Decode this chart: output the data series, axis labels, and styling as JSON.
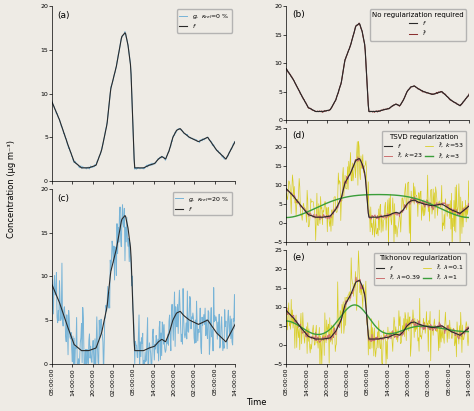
{
  "fig_width": 4.74,
  "fig_height": 4.11,
  "dpi": 100,
  "background_color": "#eeebe5",
  "panel_labels": [
    "(a)",
    "(b)",
    "(c)",
    "(d)",
    "(e)"
  ],
  "panel_label_fontsize": 6.5,
  "ylabel": "Concentration (μg m⁻³)",
  "xlabel": "Time",
  "tick_label_fontsize": 4.5,
  "axis_label_fontsize": 6,
  "legend_fontsize": 4.5,
  "legend_title_fontsize": 5,
  "colors": {
    "f": "#2a2a2a",
    "g_0": "#6baed6",
    "b_no_reg": "#8b3030",
    "tsvd_k53": "#d4c800",
    "tsvd_k23": "#cc7070",
    "tsvd_k3": "#3a9e3a",
    "tikh_01": "#d4c800",
    "tikh_039": "#cc7070",
    "tikh_1": "#3a9e3a"
  },
  "x_tick_labels": [
    "08:00:00",
    "14:00:00",
    "20:00:00",
    "02:00:00",
    "08:00:00",
    "14:00:00",
    "20:00:00",
    "02:00:00",
    "08:00:00",
    "14:00:00"
  ],
  "ylim_ab": [
    0,
    20
  ],
  "ylim_c": [
    0,
    20
  ],
  "ylim_de": [
    -5,
    25
  ],
  "yticks_ab": [
    0,
    5,
    10,
    15,
    20
  ],
  "yticks_de": [
    -5,
    0,
    5,
    10,
    15,
    20,
    25
  ]
}
